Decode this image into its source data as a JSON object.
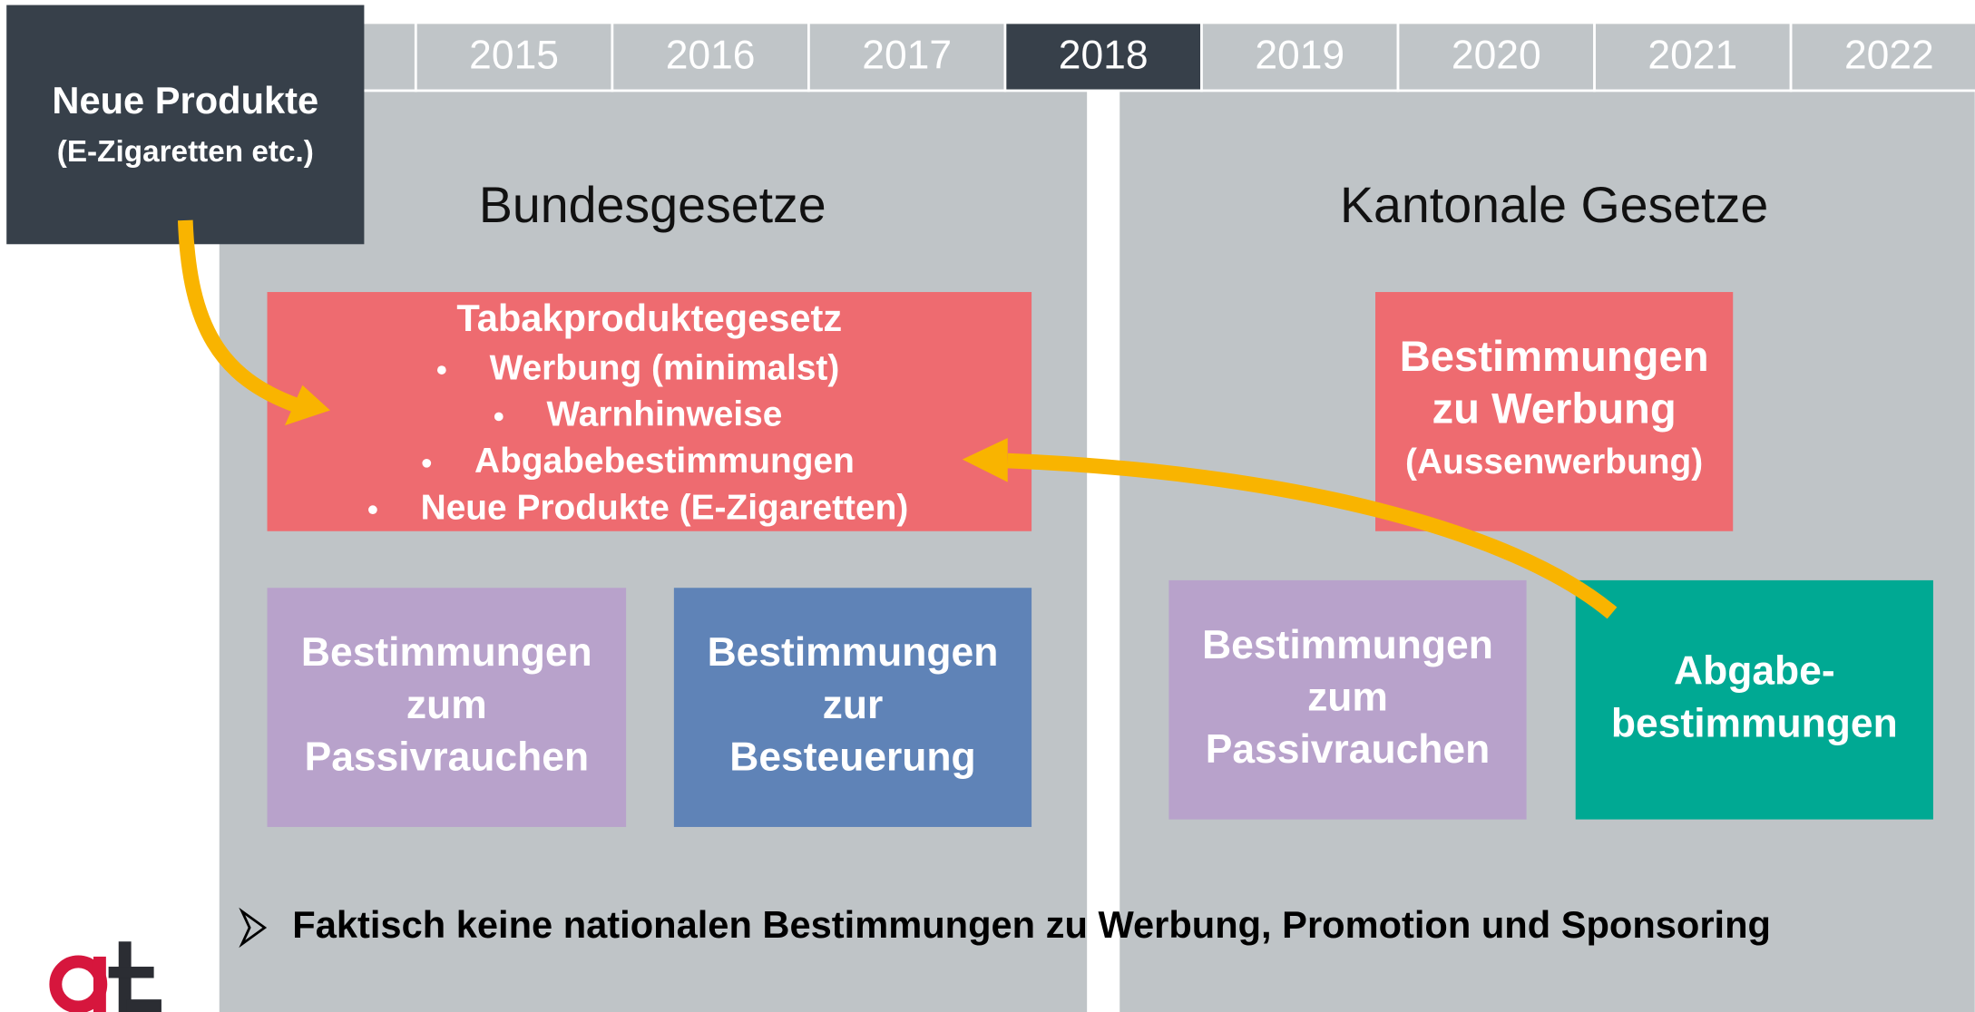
{
  "timeline": {
    "years": [
      {
        "label": "2015"
      },
      {
        "label": "2016"
      },
      {
        "label": "2017"
      },
      {
        "label": "2018",
        "active": true
      },
      {
        "label": "2019"
      },
      {
        "label": "2020"
      },
      {
        "label": "2021"
      },
      {
        "label": "2022"
      }
    ]
  },
  "callout": {
    "title": "Neue Produkte",
    "subtitle": "(E-Zigaretten etc.)"
  },
  "panels": [
    {
      "title": "Bundesgesetze",
      "boxes": [
        {
          "title": "Tabakproduktegesetz",
          "items": [
            "Werbung (minimalst)",
            "Warnhinweise",
            "Abgabebestimmungen",
            "Neue Produkte (E-Zigaretten)"
          ]
        },
        {
          "lines": [
            "Bestimmungen",
            "zum",
            "Passivrauchen"
          ]
        },
        {
          "lines": [
            "Bestimmungen",
            "zur",
            "Besteuerung"
          ]
        }
      ]
    },
    {
      "title": "Kantonale Gesetze",
      "boxes": [
        {
          "lines": [
            "Bestimmungen",
            "zu Werbung",
            "(Aussenwerbung)"
          ]
        },
        {
          "lines": [
            "Bestimmungen",
            "zum",
            "Passivrauchen"
          ]
        },
        {
          "lines": [
            "Abgabe-",
            "bestimmungen"
          ]
        }
      ]
    }
  ],
  "note": "Faktisch keine nationalen Bestimmungen zu Werbung, Promotion und Sponsoring"
}
